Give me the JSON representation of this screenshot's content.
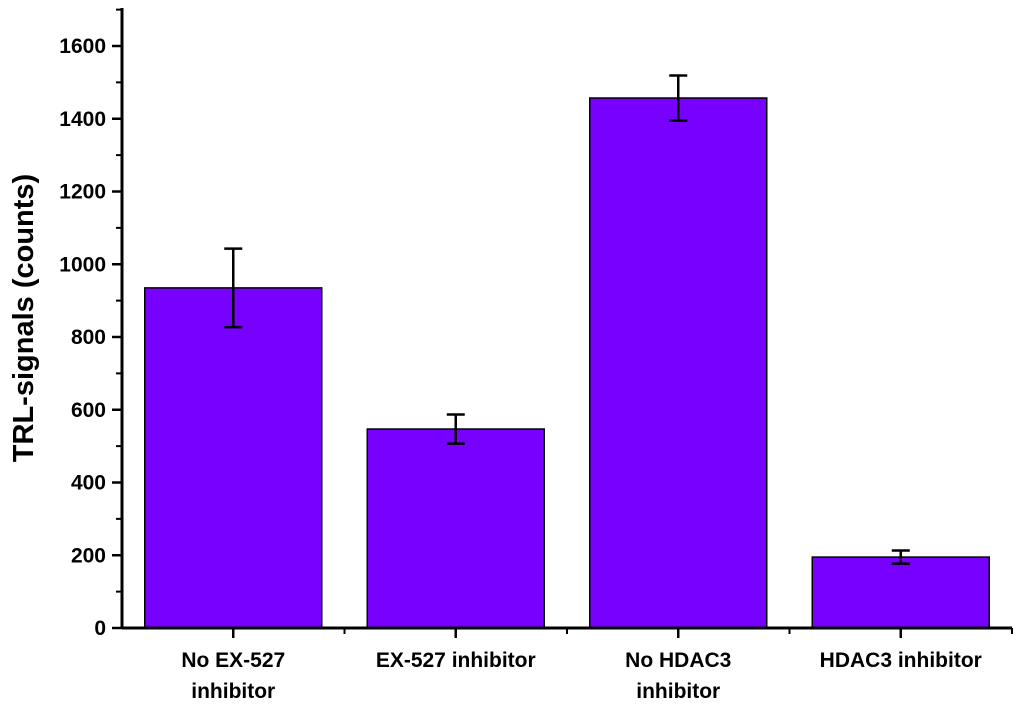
{
  "chart_data": {
    "type": "bar",
    "title": "",
    "xlabel": "",
    "ylabel": "TRL-signals (counts)",
    "ylim": [
      0,
      1700
    ],
    "yticks": [
      0,
      200,
      400,
      600,
      800,
      1000,
      1200,
      1400,
      1600
    ],
    "grid": false,
    "legend": "none",
    "categories": [
      [
        "No EX-527",
        "inhibitor"
      ],
      [
        "EX-527 inhibitor"
      ],
      [
        "No HDAC3",
        "inhibitor"
      ],
      [
        "HDAC3 inhibitor"
      ]
    ],
    "values": [
      935,
      547,
      1457,
      195
    ],
    "errors": [
      108,
      40,
      62,
      18
    ],
    "colors": {
      "bar_fill": "#7700ff",
      "bar_stroke": "#000000",
      "axis": "#000000"
    }
  }
}
